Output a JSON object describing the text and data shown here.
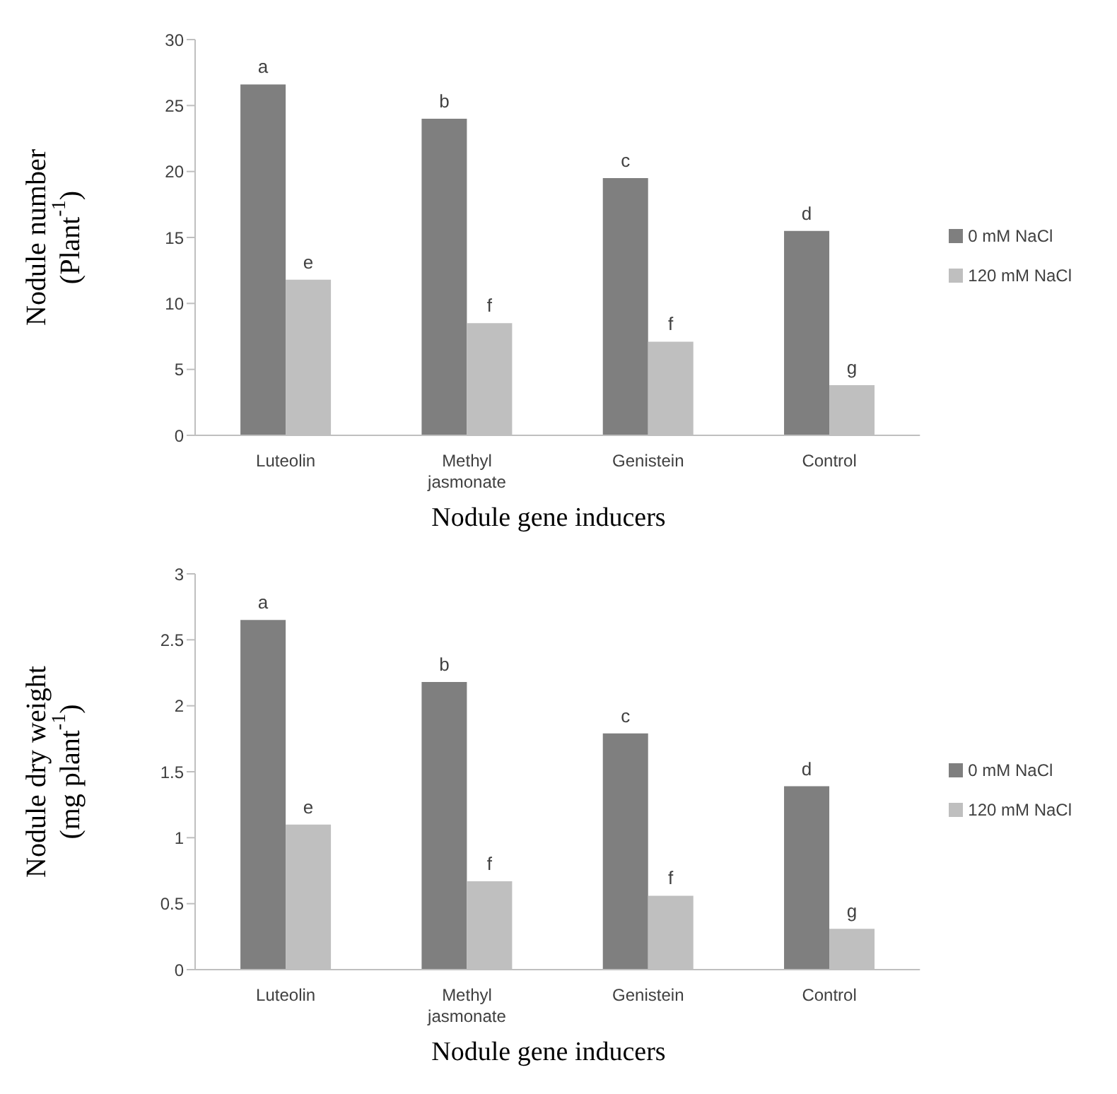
{
  "chart_data": [
    {
      "type": "bar",
      "categories": [
        "Luteolin",
        "Methyl jasmonate",
        "Genistein",
        "Control"
      ],
      "xlabel": "Nodule gene inducers",
      "ylabel": "Nodule number\n(Plant$^{-1}$)",
      "ylim": [
        0,
        30
      ],
      "yticks": [
        0,
        5,
        10,
        15,
        20,
        25,
        30
      ],
      "grid": false,
      "legend": "right",
      "series": [
        {
          "name": "0 mM NaCl",
          "color": "#7f7f7f",
          "values": [
            26.6,
            24,
            19.5,
            15.5
          ]
        },
        {
          "name": "120 mM NaCl",
          "color": "#bfbfbf",
          "values": [
            11.8,
            8.5,
            7.1,
            3.8
          ]
        }
      ],
      "annotations": [
        {
          "text": "a",
          "x": "Luteolin",
          "y": 26.6
        },
        {
          "text": "e",
          "x": "Luteolin",
          "y": 11.8
        },
        {
          "text": "b",
          "x": "Methyl jasmonate",
          "y": 24
        },
        {
          "text": "f",
          "x": "Methyl jasmonate",
          "y": 8.5
        },
        {
          "text": "c",
          "x": "Genistein",
          "y": 19.5
        },
        {
          "text": "f",
          "x": "Genistein",
          "y": 7.1
        },
        {
          "text": "d",
          "x": "Control",
          "y": 15.5
        },
        {
          "text": "g",
          "x": "Control",
          "y": 3.8
        }
      ]
    },
    {
      "type": "bar",
      "categories": [
        "Luteolin",
        "Methyl jasmonate",
        "Genistein",
        "Control"
      ],
      "xlabel": "Nodule gene inducers",
      "ylabel": "Nodule dry weight\n(mg plant$^{-1}$)",
      "ylim": [
        0,
        3
      ],
      "yticks": [
        0,
        0.5,
        1,
        1.5,
        2,
        2.5,
        3
      ],
      "grid": false,
      "legend": "right",
      "series": [
        {
          "name": "0 mM NaCl",
          "color": "#7f7f7f",
          "values": [
            2.65,
            2.18,
            1.79,
            1.39
          ]
        },
        {
          "name": "120 mM NaCl",
          "color": "#bfbfbf",
          "values": [
            1.1,
            0.67,
            0.56,
            0.31
          ]
        }
      ],
      "annotations": [
        {
          "text": "a",
          "x": "Luteolin",
          "y": 2.65
        },
        {
          "text": "e",
          "x": "Luteolin",
          "y": 1.1
        },
        {
          "text": "b",
          "x": "Methyl jasmonate",
          "y": 2.18
        },
        {
          "text": "f",
          "x": "Methyl jasmonate",
          "y": 0.67
        },
        {
          "text": "c",
          "x": "Genistein",
          "y": 1.79
        },
        {
          "text": "f",
          "x": "Genistein",
          "y": 0.56
        },
        {
          "text": "d",
          "x": "Control",
          "y": 1.39
        },
        {
          "text": "g",
          "x": "Control",
          "y": 0.31
        }
      ]
    }
  ]
}
